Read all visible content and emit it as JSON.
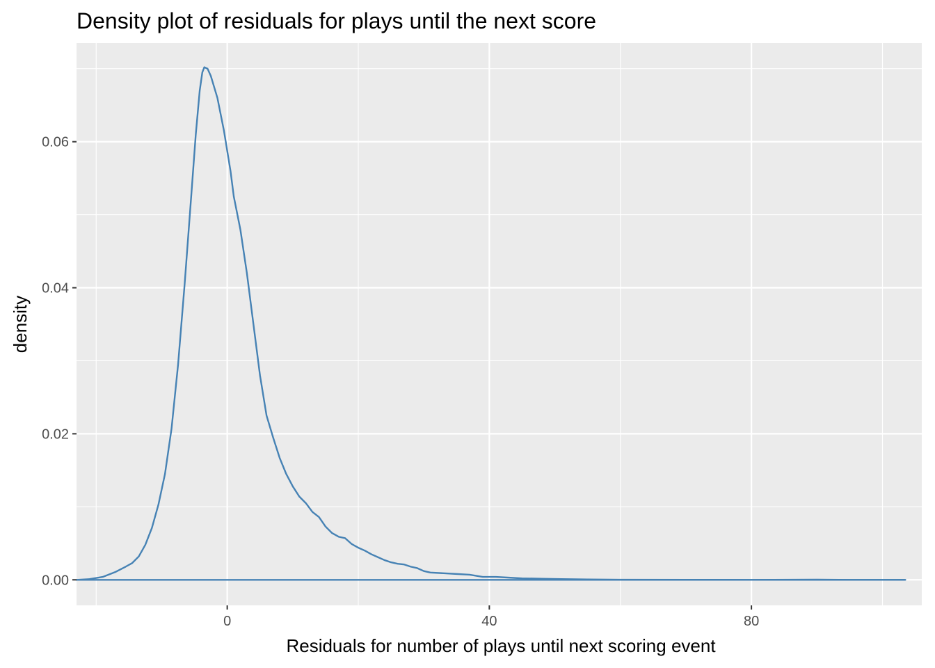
{
  "chart_data": {
    "type": "line",
    "title": "Density plot of residuals for plays until the next score",
    "xlabel": "Residuals for number of plays until next scoring event",
    "ylabel": "density",
    "xlim": [
      -23,
      106
    ],
    "ylim": [
      -0.0035,
      0.0735
    ],
    "x_ticks": [
      {
        "value": 0,
        "label": "0"
      },
      {
        "value": 40,
        "label": "40"
      },
      {
        "value": 80,
        "label": "80"
      }
    ],
    "x_minor_ticks": [
      -20,
      20,
      60,
      100
    ],
    "y_ticks": [
      {
        "value": 0,
        "label": "0.00"
      },
      {
        "value": 0.02,
        "label": "0.02"
      },
      {
        "value": 0.04,
        "label": "0.04"
      },
      {
        "value": 0.06,
        "label": "0.06"
      }
    ],
    "y_minor_ticks": [
      0.01,
      0.03,
      0.05,
      0.07
    ],
    "grid": true,
    "panel_background": "#EBEBEB",
    "grid_color": "#FFFFFF",
    "series": [
      {
        "color": "#4682B4",
        "points": [
          [
            -23.0,
            0.0
          ],
          [
            -21.0,
            0.0001
          ],
          [
            -19.0,
            0.0004
          ],
          [
            -17.0,
            0.0011
          ],
          [
            -15.5,
            0.0018
          ],
          [
            -14.5,
            0.0023
          ],
          [
            -13.5,
            0.0032
          ],
          [
            -12.5,
            0.0048
          ],
          [
            -11.5,
            0.0071
          ],
          [
            -10.5,
            0.0103
          ],
          [
            -9.5,
            0.0145
          ],
          [
            -8.5,
            0.0207
          ],
          [
            -7.5,
            0.0295
          ],
          [
            -6.5,
            0.0405
          ],
          [
            -5.5,
            0.0525
          ],
          [
            -4.8,
            0.061
          ],
          [
            -4.2,
            0.067
          ],
          [
            -3.8,
            0.0695
          ],
          [
            -3.5,
            0.0702
          ],
          [
            -3.0,
            0.07
          ],
          [
            -2.5,
            0.069
          ],
          [
            -1.5,
            0.066
          ],
          [
            -0.5,
            0.0615
          ],
          [
            0.5,
            0.056
          ],
          [
            1.0,
            0.0525
          ],
          [
            2.0,
            0.048
          ],
          [
            3.0,
            0.042
          ],
          [
            4.0,
            0.035
          ],
          [
            5.0,
            0.028
          ],
          [
            6.0,
            0.0225
          ],
          [
            7.0,
            0.0195
          ],
          [
            8.0,
            0.0167
          ],
          [
            9.0,
            0.0145
          ],
          [
            10.0,
            0.0128
          ],
          [
            11.0,
            0.0114
          ],
          [
            12.0,
            0.0105
          ],
          [
            13.0,
            0.0093
          ],
          [
            14.0,
            0.0086
          ],
          [
            15.0,
            0.0073
          ],
          [
            16.0,
            0.0064
          ],
          [
            17.0,
            0.0059
          ],
          [
            18.0,
            0.0057
          ],
          [
            19.0,
            0.0049
          ],
          [
            20.0,
            0.0044
          ],
          [
            21.0,
            0.004
          ],
          [
            22.0,
            0.0035
          ],
          [
            23.0,
            0.0031
          ],
          [
            24.0,
            0.0027
          ],
          [
            25.0,
            0.0024
          ],
          [
            26.0,
            0.0022
          ],
          [
            27.0,
            0.0021
          ],
          [
            28.0,
            0.0018
          ],
          [
            29.0,
            0.0016
          ],
          [
            30.0,
            0.0012
          ],
          [
            31.0,
            0.001
          ],
          [
            33.0,
            0.0009
          ],
          [
            35.0,
            0.0008
          ],
          [
            37.0,
            0.0007
          ],
          [
            39.0,
            0.0004
          ],
          [
            41.0,
            0.0004
          ],
          [
            43.0,
            0.0003
          ],
          [
            45.0,
            0.0002
          ],
          [
            48.0,
            0.00015
          ],
          [
            51.0,
            0.0001
          ],
          [
            55.0,
            5e-05
          ],
          [
            60.0,
            2e-05
          ],
          [
            70.0,
            1e-05
          ],
          [
            80.0,
            0.0
          ],
          [
            90.0,
            3e-05
          ],
          [
            95.0,
            0.0
          ],
          [
            103.5,
            0.0
          ]
        ]
      }
    ],
    "baseline": {
      "from": -23.0,
      "to": 103.5,
      "value": 0
    }
  }
}
